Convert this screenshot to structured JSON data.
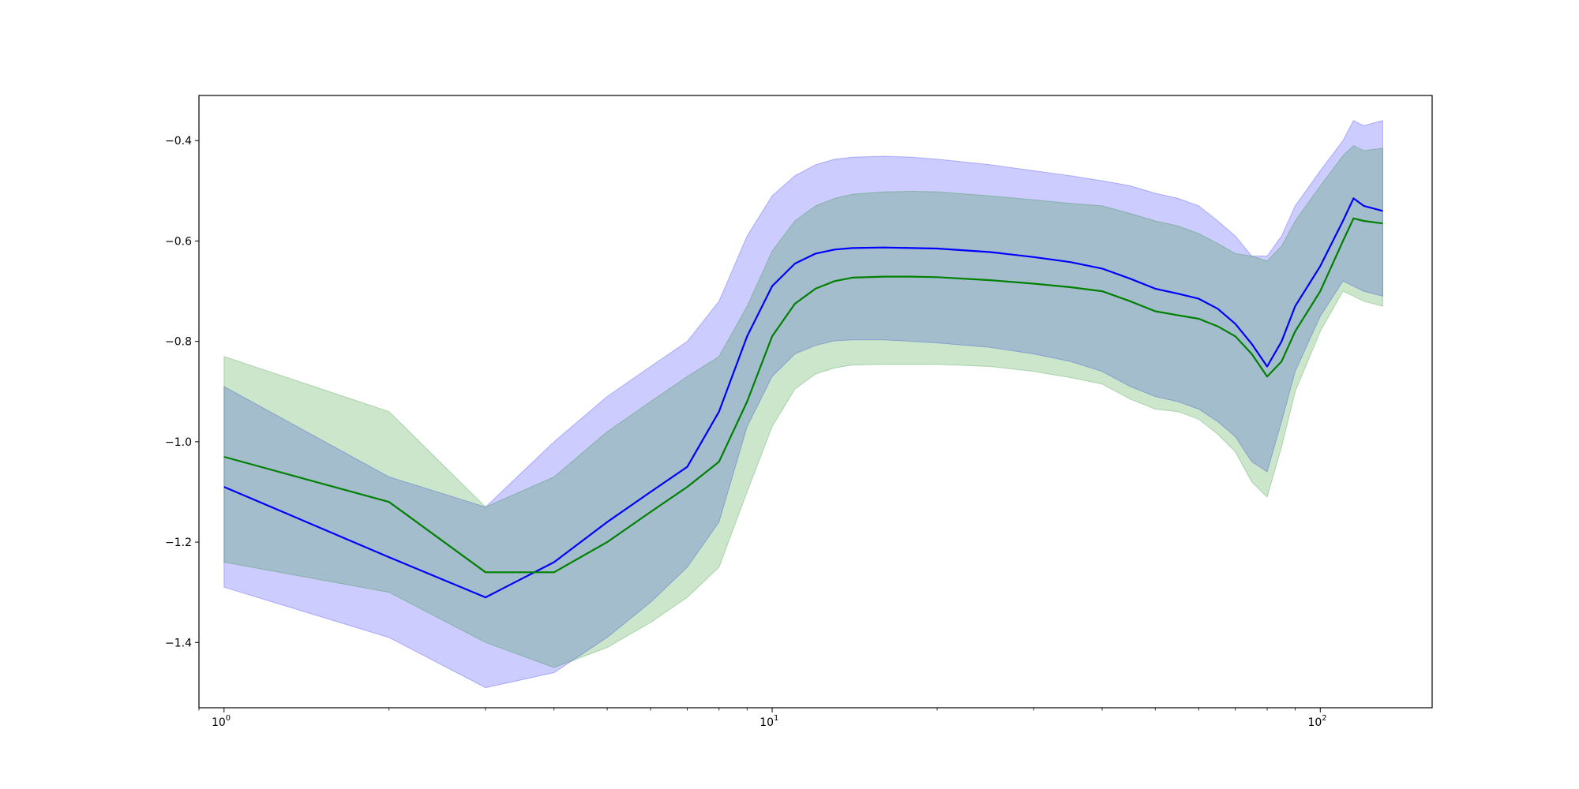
{
  "chart_data": {
    "type": "line",
    "title": "",
    "xlabel": "",
    "ylabel": "",
    "xscale": "log",
    "xlim": [
      0.9,
      160
    ],
    "ylim": [
      -1.53,
      -0.31
    ],
    "grid": false,
    "x_ticks": [
      {
        "value": 1,
        "base": "10",
        "exp": "0"
      },
      {
        "value": 10,
        "base": "10",
        "exp": "1"
      },
      {
        "value": 100,
        "base": "10",
        "exp": "2"
      }
    ],
    "y_ticks": [
      {
        "value": -1.4,
        "label": "−1.4"
      },
      {
        "value": -1.2,
        "label": "−1.2"
      },
      {
        "value": -1.0,
        "label": "−1.0"
      },
      {
        "value": -0.8,
        "label": "−0.8"
      },
      {
        "value": -0.6,
        "label": "−0.6"
      },
      {
        "value": -0.4,
        "label": "−0.4"
      }
    ],
    "series": [
      {
        "color": "#0000ff",
        "band_color": "#0000ff",
        "x": [
          1,
          2,
          3,
          4,
          5,
          6,
          7,
          8,
          9,
          10,
          11,
          12,
          13,
          14,
          16,
          18,
          20,
          25,
          30,
          35,
          40,
          45,
          50,
          55,
          60,
          65,
          70,
          75,
          80,
          85,
          90,
          100,
          110,
          115,
          120,
          130
        ],
        "mean": [
          -1.09,
          -1.23,
          -1.31,
          -1.24,
          -1.16,
          -1.1,
          -1.05,
          -0.94,
          -0.79,
          -0.69,
          -0.645,
          -0.625,
          -0.617,
          -0.614,
          -0.613,
          -0.614,
          -0.615,
          -0.622,
          -0.632,
          -0.642,
          -0.655,
          -0.675,
          -0.695,
          -0.705,
          -0.715,
          -0.735,
          -0.765,
          -0.805,
          -0.85,
          -0.8,
          -0.73,
          -0.65,
          -0.56,
          -0.515,
          -0.53,
          -0.54
        ],
        "lower": [
          -1.29,
          -1.39,
          -1.49,
          -1.46,
          -1.39,
          -1.32,
          -1.25,
          -1.16,
          -0.97,
          -0.87,
          -0.825,
          -0.808,
          -0.799,
          -0.797,
          -0.797,
          -0.8,
          -0.803,
          -0.812,
          -0.825,
          -0.84,
          -0.86,
          -0.89,
          -0.91,
          -0.92,
          -0.935,
          -0.96,
          -0.99,
          -1.04,
          -1.06,
          -0.96,
          -0.86,
          -0.75,
          -0.68,
          -0.69,
          -0.7,
          -0.71
        ],
        "upper": [
          -0.89,
          -1.07,
          -1.13,
          -1.0,
          -0.91,
          -0.85,
          -0.8,
          -0.72,
          -0.59,
          -0.51,
          -0.47,
          -0.448,
          -0.437,
          -0.433,
          -0.431,
          -0.433,
          -0.437,
          -0.448,
          -0.46,
          -0.47,
          -0.48,
          -0.49,
          -0.505,
          -0.515,
          -0.53,
          -0.56,
          -0.59,
          -0.63,
          -0.63,
          -0.59,
          -0.53,
          -0.46,
          -0.4,
          -0.36,
          -0.37,
          -0.36
        ]
      },
      {
        "color": "#008000",
        "band_color": "#008000",
        "x": [
          1,
          2,
          3,
          4,
          5,
          6,
          7,
          8,
          9,
          10,
          11,
          12,
          13,
          14,
          16,
          18,
          20,
          25,
          30,
          35,
          40,
          45,
          50,
          55,
          60,
          65,
          70,
          75,
          80,
          85,
          90,
          100,
          110,
          115,
          120,
          130
        ],
        "mean": [
          -1.03,
          -1.12,
          -1.26,
          -1.26,
          -1.2,
          -1.14,
          -1.09,
          -1.04,
          -0.92,
          -0.79,
          -0.725,
          -0.695,
          -0.68,
          -0.673,
          -0.671,
          -0.671,
          -0.672,
          -0.678,
          -0.685,
          -0.692,
          -0.7,
          -0.72,
          -0.74,
          -0.748,
          -0.755,
          -0.77,
          -0.79,
          -0.825,
          -0.87,
          -0.84,
          -0.78,
          -0.7,
          -0.6,
          -0.555,
          -0.56,
          -0.565
        ],
        "lower": [
          -1.24,
          -1.3,
          -1.4,
          -1.45,
          -1.41,
          -1.36,
          -1.31,
          -1.25,
          -1.1,
          -0.97,
          -0.895,
          -0.865,
          -0.853,
          -0.847,
          -0.846,
          -0.846,
          -0.846,
          -0.85,
          -0.86,
          -0.872,
          -0.885,
          -0.915,
          -0.935,
          -0.94,
          -0.955,
          -0.985,
          -1.02,
          -1.08,
          -1.11,
          -1.01,
          -0.9,
          -0.78,
          -0.7,
          -0.71,
          -0.72,
          -0.73
        ],
        "upper": [
          -0.83,
          -0.94,
          -1.13,
          -1.07,
          -0.98,
          -0.92,
          -0.87,
          -0.83,
          -0.73,
          -0.62,
          -0.56,
          -0.53,
          -0.515,
          -0.507,
          -0.502,
          -0.501,
          -0.502,
          -0.51,
          -0.518,
          -0.525,
          -0.53,
          -0.545,
          -0.56,
          -0.57,
          -0.585,
          -0.605,
          -0.625,
          -0.63,
          -0.64,
          -0.61,
          -0.56,
          -0.49,
          -0.43,
          -0.41,
          -0.42,
          -0.415
        ]
      }
    ]
  }
}
